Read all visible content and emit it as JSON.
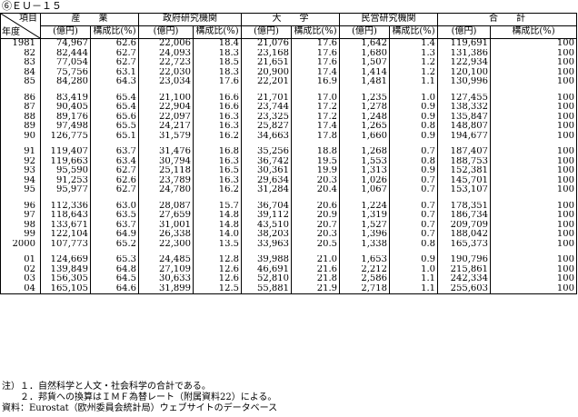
{
  "caption": "⑥ＥＵ－１５",
  "header": {
    "item_label": "項目",
    "year_label": "年度",
    "groups": [
      "産　　業",
      "政府研究機関",
      "大　　学",
      "民営研究機関",
      "合　　計"
    ],
    "sub_amount": "(億円)",
    "sub_ratio": "構成比(%)"
  },
  "blocks": [
    [
      [
        "1981",
        "74,967",
        "62.6",
        "22,006",
        "18.4",
        "21,076",
        "17.6",
        "1,642",
        "1.4",
        "119,691",
        "100"
      ],
      [
        "82",
        "82,444",
        "62.7",
        "24,093",
        "18.3",
        "23,168",
        "17.6",
        "1,680",
        "1.3",
        "131,386",
        "100"
      ],
      [
        "83",
        "77,054",
        "62.7",
        "22,723",
        "18.5",
        "21,651",
        "17.6",
        "1,507",
        "1.2",
        "122,934",
        "100"
      ],
      [
        "84",
        "75,756",
        "63.1",
        "22,030",
        "18.3",
        "20,900",
        "17.4",
        "1,414",
        "1.2",
        "120,100",
        "100"
      ],
      [
        "85",
        "84,280",
        "64.3",
        "23,034",
        "17.6",
        "22,201",
        "16.9",
        "1,481",
        "1.1",
        "130,996",
        "100"
      ]
    ],
    [
      [
        "86",
        "83,419",
        "65.4",
        "21,100",
        "16.6",
        "21,701",
        "17.0",
        "1,235",
        "1.0",
        "127,455",
        "100"
      ],
      [
        "87",
        "90,405",
        "65.4",
        "22,904",
        "16.6",
        "23,744",
        "17.2",
        "1,278",
        "0.9",
        "138,332",
        "100"
      ],
      [
        "88",
        "89,176",
        "65.6",
        "22,097",
        "16.3",
        "23,325",
        "17.2",
        "1,248",
        "0.9",
        "135,847",
        "100"
      ],
      [
        "89",
        "97,498",
        "65.5",
        "24,217",
        "16.3",
        "25,827",
        "17.4",
        "1,265",
        "0.8",
        "148,807",
        "100"
      ],
      [
        "90",
        "126,775",
        "65.1",
        "31,579",
        "16.2",
        "34,663",
        "17.8",
        "1,660",
        "0.9",
        "194,677",
        "100"
      ]
    ],
    [
      [
        "91",
        "119,407",
        "63.7",
        "31,476",
        "16.8",
        "35,256",
        "18.8",
        "1,268",
        "0.7",
        "187,407",
        "100"
      ],
      [
        "92",
        "119,663",
        "63.4",
        "30,794",
        "16.3",
        "36,742",
        "19.5",
        "1,553",
        "0.8",
        "188,753",
        "100"
      ],
      [
        "93",
        "95,590",
        "62.7",
        "25,118",
        "16.5",
        "30,361",
        "19.9",
        "1,313",
        "0.9",
        "152,381",
        "100"
      ],
      [
        "94",
        "91,253",
        "62.6",
        "23,789",
        "16.3",
        "29,634",
        "20.3",
        "1,026",
        "0.7",
        "145,701",
        "100"
      ],
      [
        "95",
        "95,977",
        "62.7",
        "24,780",
        "16.2",
        "31,284",
        "20.4",
        "1,067",
        "0.7",
        "153,107",
        "100"
      ]
    ],
    [
      [
        "96",
        "112,336",
        "63.0",
        "28,087",
        "15.7",
        "36,704",
        "20.6",
        "1,224",
        "0.7",
        "178,351",
        "100"
      ],
      [
        "97",
        "118,643",
        "63.5",
        "27,659",
        "14.8",
        "39,112",
        "20.9",
        "1,319",
        "0.7",
        "186,734",
        "100"
      ],
      [
        "98",
        "133,671",
        "63.7",
        "31,001",
        "14.8",
        "43,510",
        "20.7",
        "1,527",
        "0.7",
        "209,709",
        "100"
      ],
      [
        "99",
        "122,104",
        "64.9",
        "26,338",
        "14.0",
        "38,203",
        "20.3",
        "1,396",
        "0.7",
        "188,042",
        "100"
      ],
      [
        "2000",
        "107,773",
        "65.2",
        "22,300",
        "13.5",
        "33,963",
        "20.5",
        "1,338",
        "0.8",
        "165,373",
        "100"
      ]
    ],
    [
      [
        "01",
        "124,669",
        "65.3",
        "24,485",
        "12.8",
        "39,988",
        "21.0",
        "1,653",
        "0.9",
        "190,796",
        "100"
      ],
      [
        "02",
        "139,849",
        "64.8",
        "27,109",
        "12.6",
        "46,691",
        "21.6",
        "2,212",
        "1.0",
        "215,861",
        "100"
      ],
      [
        "03",
        "156,305",
        "64.5",
        "30,633",
        "12.6",
        "52,810",
        "21.8",
        "2,586",
        "1.1",
        "242,334",
        "100"
      ],
      [
        "04",
        "165,105",
        "64.6",
        "31,899",
        "12.5",
        "55,881",
        "21.9",
        "2,718",
        "1.1",
        "255,603",
        "100"
      ]
    ]
  ],
  "notes": [
    "注）１．自然科学と人文・社会科学の合計である。",
    "　　２．邦貨への換算はＩＭＦ為替レート（附属資料22）による。",
    "資料：Eurostat（欧州委員会統計局）ウェブサイトのデータベース"
  ]
}
